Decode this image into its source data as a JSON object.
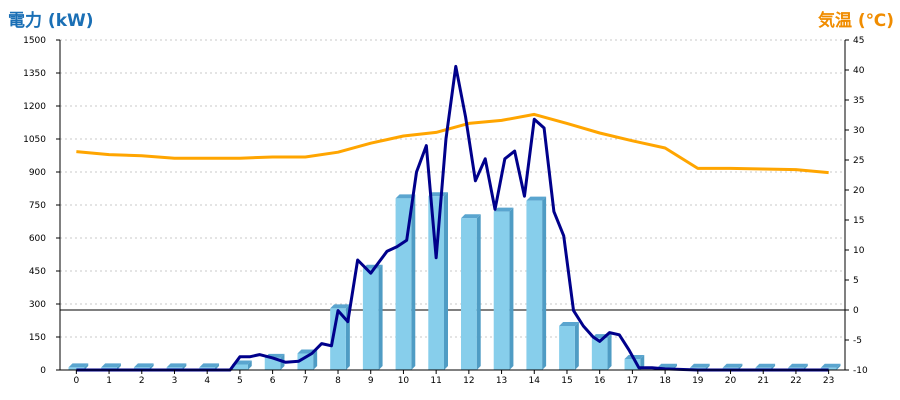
{
  "chart_data": {
    "type": "bar",
    "left_axis_title": "電力 (kW)",
    "right_axis_title": "気温 (℃)",
    "categories": [
      "0",
      "1",
      "2",
      "3",
      "4",
      "5",
      "6",
      "7",
      "8",
      "9",
      "10",
      "11",
      "12",
      "13",
      "14",
      "15",
      "16",
      "17",
      "18",
      "19",
      "20",
      "21",
      "22",
      "23"
    ],
    "y_left": {
      "min": 0,
      "max": 1500,
      "ticks": [
        0,
        150,
        300,
        450,
        600,
        750,
        900,
        1050,
        1200,
        1350,
        1500
      ]
    },
    "y_right": {
      "min": -10,
      "max": 45,
      "ticks": [
        -10,
        -5,
        0,
        5,
        10,
        15,
        20,
        25,
        30,
        35,
        40,
        45
      ]
    },
    "grid": true,
    "bars": {
      "axis": "left",
      "color": "#87ceeb",
      "values": [
        12,
        12,
        12,
        12,
        12,
        25,
        55,
        75,
        280,
        460,
        780,
        790,
        690,
        720,
        770,
        200,
        145,
        50,
        10,
        10,
        10,
        10,
        10,
        10
      ]
    },
    "power_line": {
      "axis": "left",
      "color": "#00008b",
      "x": [
        0,
        1,
        2,
        3,
        4,
        4.7,
        5,
        5.3,
        5.6,
        6,
        6.4,
        6.8,
        7.2,
        7.5,
        7.8,
        8,
        8.3,
        8.6,
        9,
        9.5,
        9.8,
        10.1,
        10.4,
        10.7,
        11,
        11.3,
        11.6,
        11.9,
        12.2,
        12.5,
        12.8,
        13.1,
        13.4,
        13.7,
        14,
        14.3,
        14.6,
        14.9,
        15.2,
        15.5,
        15.8,
        16,
        16.3,
        16.6,
        16.9,
        17.2,
        17.6,
        18,
        19,
        20,
        21,
        22,
        23
      ],
      "y": [
        0,
        0,
        0,
        0,
        0,
        0,
        60,
        60,
        70,
        55,
        35,
        40,
        75,
        120,
        110,
        270,
        220,
        500,
        440,
        540,
        560,
        590,
        900,
        1020,
        510,
        1050,
        1380,
        1150,
        860,
        960,
        730,
        960,
        995,
        790,
        1140,
        1100,
        720,
        610,
        270,
        200,
        150,
        130,
        170,
        160,
        90,
        10,
        10,
        5,
        0,
        0,
        0,
        0,
        0
      ]
    },
    "temperature_line": {
      "axis": "right",
      "color": "#ffa500",
      "x": [
        0,
        1,
        2,
        3,
        4,
        5,
        6,
        7,
        8,
        9,
        10,
        11,
        12,
        13,
        14,
        15,
        16,
        17,
        18,
        19,
        20,
        21,
        22,
        23
      ],
      "y": [
        26.4,
        25.9,
        25.7,
        25.3,
        25.3,
        25.3,
        25.5,
        25.5,
        26.3,
        27.8,
        29.0,
        29.6,
        31.1,
        31.6,
        32.6,
        31.1,
        29.5,
        28.2,
        27.0,
        23.6,
        23.6,
        23.5,
        23.4,
        22.9
      ]
    }
  }
}
